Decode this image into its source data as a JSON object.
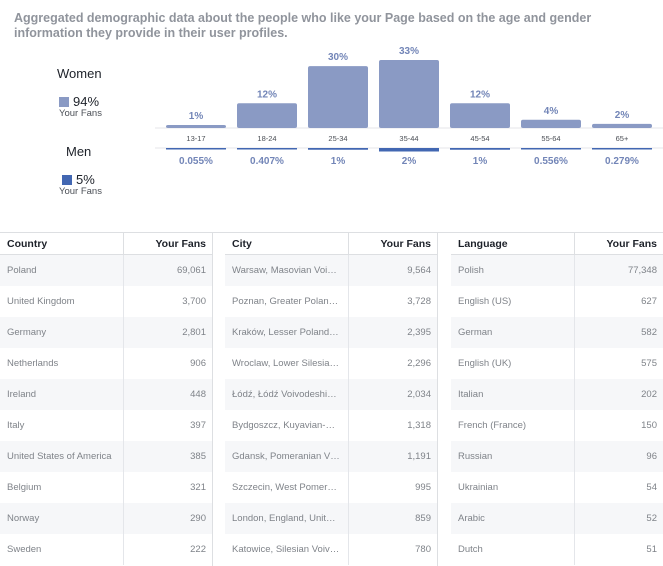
{
  "intro": "Aggregated demographic data about the people who like your Page based on the age and gender information they provide in their user profiles.",
  "legend": {
    "women": {
      "title": "Women",
      "pct": "94%",
      "sub": "Your Fans",
      "color": "#8a9ac4"
    },
    "men": {
      "title": "Men",
      "pct": "5%",
      "sub": "Your Fans",
      "color": "#4267b2"
    }
  },
  "chart_data": {
    "type": "bar",
    "categories": [
      "13-17",
      "18-24",
      "25-34",
      "35-44",
      "45-54",
      "55-64",
      "65+"
    ],
    "series": [
      {
        "name": "Women",
        "values": [
          1,
          12,
          30,
          33,
          12,
          4,
          2
        ],
        "labels": [
          "1%",
          "12%",
          "30%",
          "33%",
          "12%",
          "4%",
          "2%"
        ],
        "color": "#8a9ac4"
      },
      {
        "name": "Men",
        "values": [
          0.055,
          0.407,
          1,
          2,
          1,
          0.556,
          0.279
        ],
        "labels": [
          "0.055%",
          "0.407%",
          "1%",
          "2%",
          "1%",
          "0.556%",
          "0.279%"
        ],
        "color": "#4267b2"
      }
    ],
    "ylim": [
      0,
      33
    ]
  },
  "tables": {
    "country": {
      "header": [
        "Country",
        "Your Fans"
      ],
      "rows": [
        [
          "Poland",
          "69,061"
        ],
        [
          "United Kingdom",
          "3,700"
        ],
        [
          "Germany",
          "2,801"
        ],
        [
          "Netherlands",
          "906"
        ],
        [
          "Ireland",
          "448"
        ],
        [
          "Italy",
          "397"
        ],
        [
          "United States of America",
          "385"
        ],
        [
          "Belgium",
          "321"
        ],
        [
          "Norway",
          "290"
        ],
        [
          "Sweden",
          "222"
        ]
      ]
    },
    "city": {
      "header": [
        "City",
        "Your Fans"
      ],
      "rows": [
        [
          "Warsaw, Masovian Voi…",
          "9,564"
        ],
        [
          "Poznan, Greater Polan…",
          "3,728"
        ],
        [
          "Kraków, Lesser Poland…",
          "2,395"
        ],
        [
          "Wroclaw, Lower Silesia…",
          "2,296"
        ],
        [
          "Łódź, Łódź Voivodeshi…",
          "2,034"
        ],
        [
          "Bydgoszcz, Kuyavian-…",
          "1,318"
        ],
        [
          "Gdansk, Pomeranian V…",
          "1,191"
        ],
        [
          "Szczecin, West Pomer…",
          "995"
        ],
        [
          "London, England, Unit…",
          "859"
        ],
        [
          "Katowice, Silesian Voiv…",
          "780"
        ]
      ]
    },
    "language": {
      "header": [
        "Language",
        "Your Fans"
      ],
      "rows": [
        [
          "Polish",
          "77,348"
        ],
        [
          "English (US)",
          "627"
        ],
        [
          "German",
          "582"
        ],
        [
          "English (UK)",
          "575"
        ],
        [
          "Italian",
          "202"
        ],
        [
          "French (France)",
          "150"
        ],
        [
          "Russian",
          "96"
        ],
        [
          "Ukrainian",
          "54"
        ],
        [
          "Arabic",
          "52"
        ],
        [
          "Dutch",
          "51"
        ]
      ]
    }
  }
}
